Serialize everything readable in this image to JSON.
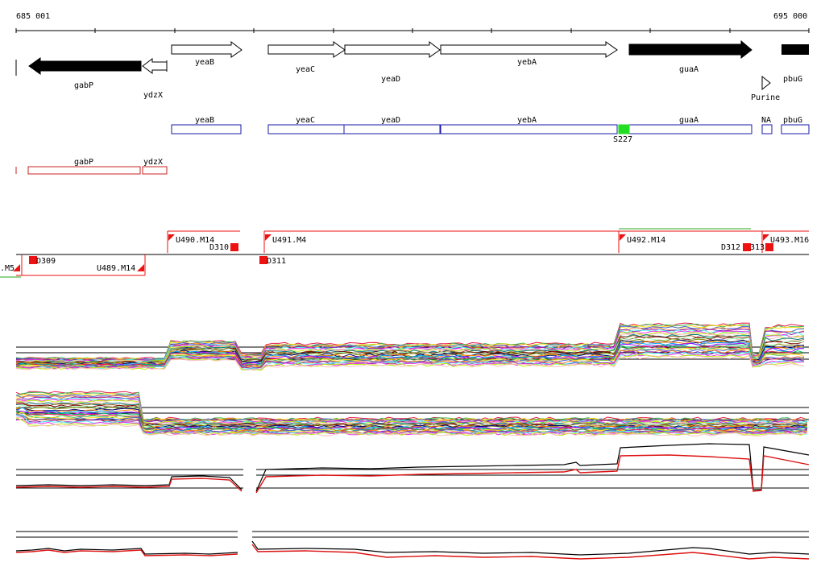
{
  "ruler": {
    "start_label": "685 001",
    "end_label": "695 000"
  },
  "annotated_genes": [
    {
      "name": "gabP",
      "strand": "-",
      "filled": true
    },
    {
      "name": "ydzX",
      "strand": "-",
      "filled": false
    },
    {
      "name": "yeaB",
      "strand": "+",
      "filled": false
    },
    {
      "name": "yeaC",
      "strand": "+",
      "filled": false
    },
    {
      "name": "yeaD",
      "strand": "+",
      "filled": false
    },
    {
      "name": "yebA",
      "strand": "+",
      "filled": false
    },
    {
      "name": "guaA",
      "strand": "+",
      "filled": true
    },
    {
      "name": "Purine",
      "strand": "+",
      "filled": false
    },
    {
      "name": "pbuG",
      "strand": "+",
      "filled": true
    }
  ],
  "forward_segments": [
    {
      "label": "yeaB"
    },
    {
      "label": "yeaC"
    },
    {
      "label": "yeaD"
    },
    {
      "label": "yebA"
    },
    {
      "label": "guaA"
    },
    {
      "label": "NA"
    },
    {
      "label": "pbuG"
    }
  ],
  "forward_marker": {
    "label": "S227",
    "color": "#22dd22"
  },
  "reverse_segments": [
    {
      "label": "gabP"
    },
    {
      "label": "ydzX"
    }
  ],
  "transcription_units": {
    "forward": [
      "U490.M14",
      "U491.M4",
      "U492.M14",
      "U493.M16"
    ],
    "reverse": [
      ".M5",
      "U489.M14"
    ],
    "down_markers_top": [
      "D310",
      "D312",
      "313"
    ],
    "down_markers_bottom": [
      "D309",
      "D311"
    ]
  },
  "colors": {
    "forward_box": "#1a1aaa",
    "reverse_box": "#cc2222",
    "marker_red": "#ee1111",
    "trace_black": "#000000",
    "trace_red": "#dd1111"
  }
}
